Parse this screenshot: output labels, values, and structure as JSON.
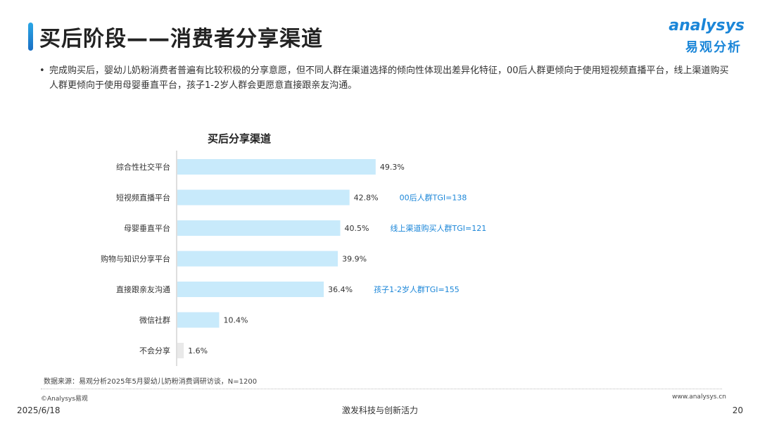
{
  "header": {
    "title": "买后阶段——消费者分享渠道",
    "logo_word": "analysys",
    "logo_cn": "易观分析"
  },
  "summary": {
    "bullet": "•",
    "text": "完成购买后，婴幼儿奶粉消费者普遍有比较积极的分享意愿，但不同人群在渠道选择的倾向性体现出差异化特征，00后人群更倾向于使用短视频直播平台，线上渠道购买人群更倾向于使用母婴垂直平台，孩子1-2岁人群会更愿意直接跟亲友沟通。"
  },
  "chart_data": {
    "type": "bar",
    "orientation": "horizontal",
    "title": "买后分享渠道",
    "categories": [
      "综合性社交平台",
      "短视频直播平台",
      "母婴垂直平台",
      "购物与知识分享平台",
      "直接跟亲友沟通",
      "微信社群",
      "不会分享"
    ],
    "values": [
      49.3,
      42.8,
      40.5,
      39.9,
      36.4,
      10.4,
      1.6
    ],
    "value_labels": [
      "49.3%",
      "42.8%",
      "40.5%",
      "39.9%",
      "36.4%",
      "10.4%",
      "1.6%"
    ],
    "unit": "%",
    "xlim": [
      0,
      60
    ],
    "grid": false,
    "colors": {
      "bar": "#c8eafb",
      "bar_last": "#e9e9e9",
      "annotation": "#1b86d8",
      "axis": "#bdbdbd"
    },
    "annotations": [
      {
        "category_index": 1,
        "text": "00后人群TGI=138"
      },
      {
        "category_index": 2,
        "text": "线上渠道购买人群TGI=121"
      },
      {
        "category_index": 4,
        "text": "孩子1-2岁人群TGI=155"
      }
    ]
  },
  "footer": {
    "source": "数据来源：易观分析2025年5月婴幼儿奶粉消费调研访谈，N=1200",
    "copyright": "©Analysys易观",
    "website": "www.analysys.cn",
    "date": "2025/6/18",
    "slogan": "激发科技与创新活力",
    "page_number": "20"
  }
}
